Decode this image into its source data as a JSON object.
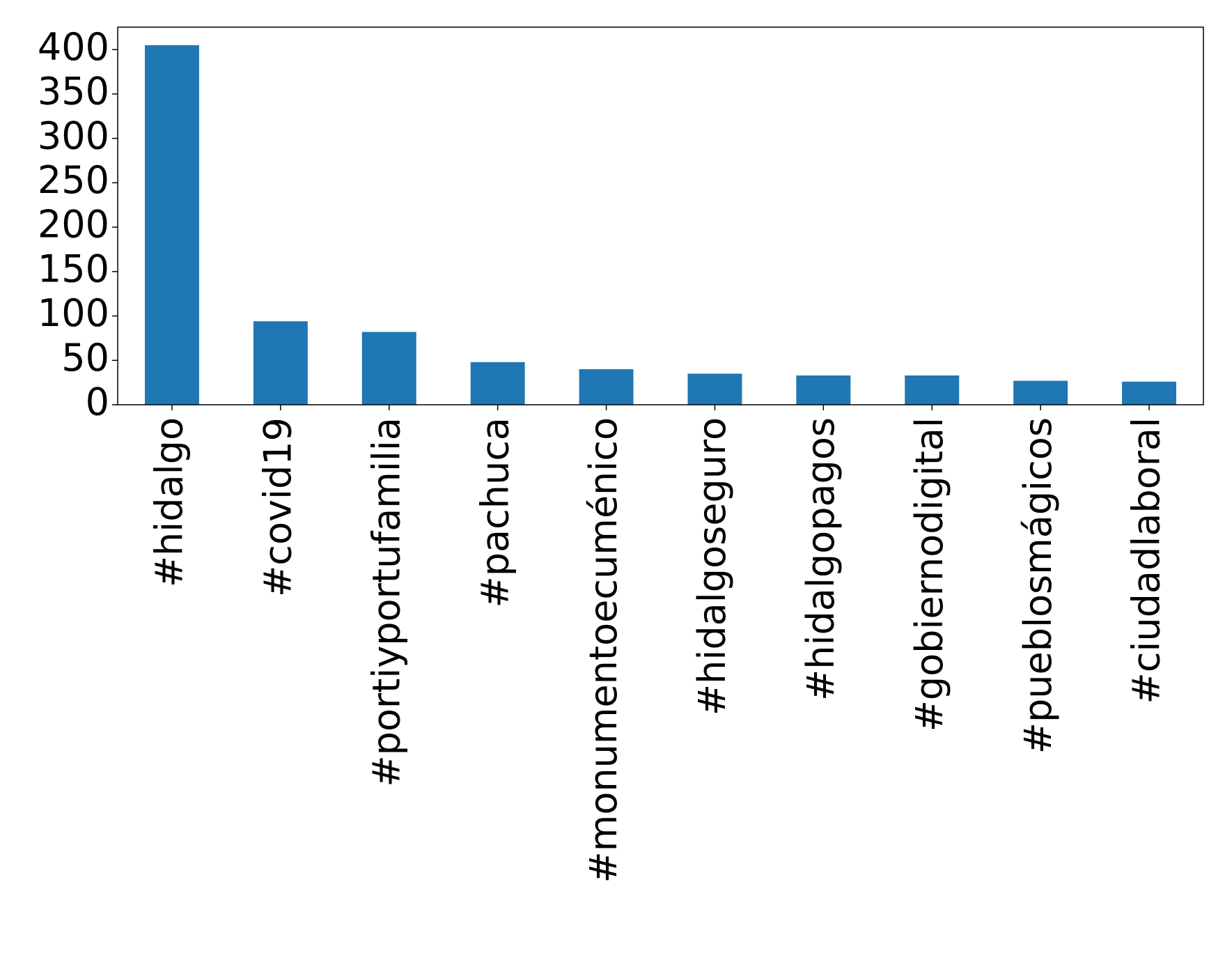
{
  "chart_data": {
    "type": "bar",
    "categories": [
      "#hidalgo",
      "#covid19",
      "#portiyportufamilia",
      "#pachuca",
      "#monumentoecuménico",
      "#hidalgoseguro",
      "#hidalgopagos",
      "#gobiernodigital",
      "#pueblosmágicos",
      "#ciudadlaboral"
    ],
    "values": [
      405,
      94,
      82,
      48,
      40,
      35,
      33,
      33,
      27,
      26
    ],
    "color": "#1f77b4",
    "ylim": [
      0,
      425.25
    ],
    "yticks": [
      0,
      50,
      100,
      150,
      200,
      250,
      300,
      350,
      400
    ],
    "grid": false
  }
}
